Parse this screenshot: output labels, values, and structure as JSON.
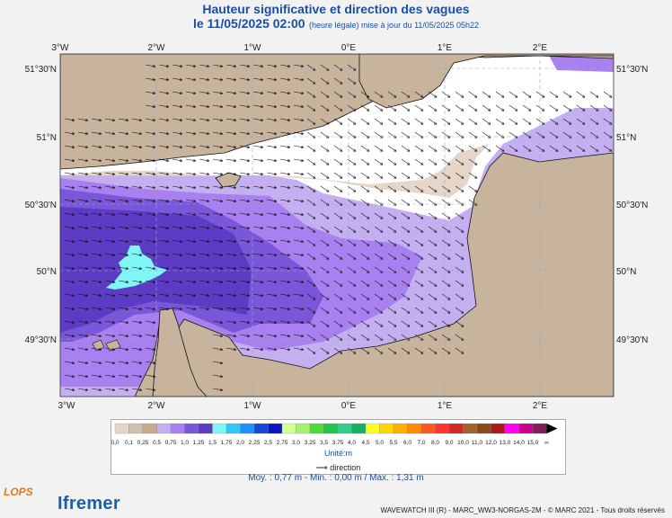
{
  "header": {
    "title": "Hauteur significative et direction des vagues",
    "datetime": "le 11/05/2025 02:00",
    "subtitle": "(heure légale) mise à jour du 11/05/2025 05h22"
  },
  "map": {
    "lon_labels": [
      "3°W",
      "2°W",
      "1°W",
      "0°E",
      "1°E",
      "2°E"
    ],
    "lat_labels": [
      "51°30'N",
      "51°N",
      "50°30'N",
      "50°N",
      "49°30'N"
    ],
    "land_color": "#c8b39c",
    "sea_background": "#ffffff"
  },
  "legend": {
    "values": [
      "0,0",
      "0,1",
      "0,25",
      "0,5",
      "0,75",
      "1,0",
      "1,25",
      "1,5",
      "1,75",
      "2,0",
      "2,25",
      "2,5",
      "2,75",
      "3,0",
      "3,25",
      "3,5",
      "3,75",
      "4,0",
      "4,5",
      "5,0",
      "5,5",
      "6,0",
      "7,0",
      "8,0",
      "9,0",
      "10,0",
      "11,0",
      "12,0",
      "13,0",
      "14,0",
      "15,0",
      "∞"
    ],
    "colors": [
      "#e6d6c8",
      "#d2c0ae",
      "#c7a98b",
      "#c4b0f0",
      "#a880f0",
      "#7a56d8",
      "#5c3cc4",
      "#7ff7f7",
      "#2fc8f7",
      "#1e90ff",
      "#1446e0",
      "#0a14c0",
      "#d4ff94",
      "#a6f070",
      "#4cdc34",
      "#22c44a",
      "#2ecf8a",
      "#16b060",
      "#ffff20",
      "#ffd700",
      "#ffb000",
      "#ff8c00",
      "#ff5a1e",
      "#ff3232",
      "#d22828",
      "#a06428",
      "#8b4a1a",
      "#b01818",
      "#ff00ff",
      "#c8008c",
      "#802058"
    ],
    "unit": "Unité:m",
    "direction_label": "direction"
  },
  "stats": "Moy. : 0,77 m  -  Min. : 0,00 m / Max. : 1,31 m",
  "footer": "WAVEWATCH III (R) - MARC_WW3-NORGAS-2M - © MARC 2021 - Tous droits réservés",
  "logos": {
    "lops": "LOPS",
    "ifremer": "Ifremer"
  }
}
